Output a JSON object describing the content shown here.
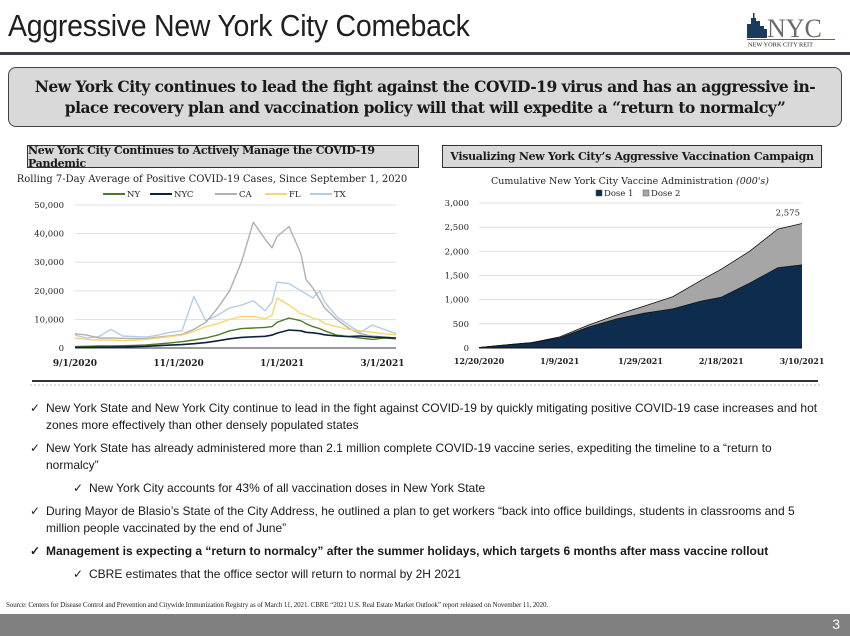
{
  "header": {
    "title": "Aggressive New York City Comeback",
    "logo": {
      "main_text": "NYC",
      "sub_text": "NEW YORK CITY REIT",
      "icon": "skyline-icon"
    }
  },
  "callout": {
    "text": "New York City continues to lead the fight against the COVID-19 virus and has an aggressive in-place recovery plan and vaccination policy will that will expedite a “return to normalcy”"
  },
  "sections": {
    "left_header": "New York City Continues to Actively Manage the COVID-19 Pandemic",
    "right_header": "Visualizing New York City’s Aggressive Vaccination Campaign"
  },
  "chart_data": [
    {
      "type": "line",
      "title": "Rolling 7-Day Average of Positive COVID-19 Cases, Since September 1, 2020",
      "xlabel": "",
      "ylabel": "",
      "ylim": [
        0,
        50000
      ],
      "yticks": [
        0,
        10000,
        20000,
        30000,
        40000,
        50000
      ],
      "ytick_labels": [
        "0",
        "10,000",
        "20,000",
        "30,000",
        "40,000",
        "50,000"
      ],
      "xtick_labels": [
        "9/1/2020",
        "11/1/2020",
        "1/1/2021",
        "3/1/2021"
      ],
      "xtick_positions": [
        0,
        61,
        122,
        181
      ],
      "xrange": [
        0,
        189
      ],
      "grid": true,
      "legend": "top",
      "x": [
        0,
        7,
        14,
        21,
        28,
        35,
        42,
        49,
        56,
        63,
        70,
        77,
        84,
        91,
        98,
        105,
        112,
        116,
        119,
        126,
        133,
        136,
        140,
        144,
        147,
        154,
        161,
        168,
        175,
        182,
        189
      ],
      "series": [
        {
          "name": "NY",
          "color": "#4f7a2c",
          "values": [
            500,
            600,
            700,
            700,
            800,
            900,
            1100,
            1400,
            1800,
            2200,
            2800,
            3500,
            4500,
            6000,
            6800,
            7000,
            7200,
            7500,
            9000,
            10500,
            9500,
            8500,
            7500,
            6800,
            6000,
            4500,
            4000,
            3500,
            3000,
            3500,
            3200
          ]
        },
        {
          "name": "NYC",
          "color": "#0c2340",
          "values": [
            200,
            250,
            300,
            350,
            400,
            500,
            600,
            800,
            1000,
            1200,
            1500,
            1900,
            2500,
            3200,
            3700,
            3900,
            4100,
            4500,
            5200,
            6300,
            6000,
            5500,
            5300,
            5000,
            4600,
            4200,
            4000,
            4200,
            3800,
            3700,
            3500
          ]
        },
        {
          "name": "CA",
          "color": "#b0b0b0",
          "values": [
            5000,
            4500,
            3500,
            3500,
            3400,
            3300,
            3300,
            3800,
            4200,
            4800,
            6500,
            9000,
            14000,
            20000,
            30000,
            44000,
            38000,
            35000,
            39000,
            42500,
            33000,
            24000,
            21000,
            17000,
            14000,
            10000,
            7000,
            5000,
            4200,
            3800,
            3500
          ]
        },
        {
          "name": "FL",
          "color": "#f5d76e",
          "values": [
            3500,
            3000,
            2800,
            2800,
            2600,
            2700,
            3000,
            3500,
            4000,
            4500,
            5800,
            7500,
            8500,
            10000,
            11000,
            11000,
            10200,
            11500,
            17500,
            15000,
            12000,
            11500,
            10500,
            9800,
            8500,
            7500,
            6500,
            6000,
            5500,
            5000,
            4500
          ]
        },
        {
          "name": "TX",
          "color": "#b4cde6",
          "values": [
            4500,
            3500,
            4000,
            6500,
            4200,
            4000,
            3800,
            4500,
            5500,
            6000,
            18000,
            9500,
            11500,
            14000,
            15000,
            16500,
            13000,
            16000,
            23000,
            22500,
            20000,
            19000,
            17500,
            20000,
            16000,
            11000,
            8000,
            5500,
            8000,
            6500,
            5000
          ]
        }
      ]
    },
    {
      "type": "area",
      "stacked": true,
      "title": "Cumulative New York City Vaccine Administration",
      "title_suffix": "(000's)",
      "xlabel": "",
      "ylabel": "",
      "ylim": [
        0,
        3000
      ],
      "yticks": [
        0,
        500,
        1000,
        1500,
        2000,
        2500,
        3000
      ],
      "ytick_labels": [
        "0",
        "500",
        "1,000",
        "1,500",
        "2,000",
        "2,500",
        "3,000"
      ],
      "xtick_labels": [
        "12/20/2020",
        "1/9/2021",
        "1/29/2021",
        "2/18/2021",
        "3/10/2021"
      ],
      "xtick_positions": [
        0,
        20,
        40,
        60,
        80
      ],
      "xrange": [
        0,
        80
      ],
      "grid": true,
      "legend": "top",
      "x": [
        0,
        6,
        13,
        20,
        27,
        34,
        41,
        48,
        55,
        60,
        67,
        74,
        80
      ],
      "series": [
        {
          "name": "Dose 1",
          "color": "#0e2d4e",
          "values": [
            10,
            60,
            110,
            210,
            430,
            600,
            720,
            810,
            970,
            1050,
            1340,
            1660,
            1720
          ]
        },
        {
          "name": "Dose 2",
          "color": "#a6a6a6",
          "values": [
            0,
            0,
            0,
            20,
            40,
            80,
            150,
            250,
            430,
            580,
            660,
            800,
            855
          ]
        }
      ],
      "annotations": [
        {
          "x": 80,
          "label": "2,575"
        }
      ]
    }
  ],
  "bullets": [
    {
      "level": 1,
      "bold": false,
      "text": "New York State and New York City continue to lead in the fight against COVID-19 by quickly mitigating positive COVID-19 case increases and hot zones more effectively than other densely populated states"
    },
    {
      "level": 1,
      "bold": false,
      "text": "New York State has already administered more than 2.1 million complete COVID-19 vaccine series, expediting the timeline to a “return to normalcy”"
    },
    {
      "level": 2,
      "bold": false,
      "text": "New York City accounts for 43% of all vaccination doses in New York State"
    },
    {
      "level": 1,
      "bold": false,
      "text": "During Mayor de Blasio’s State of the City Address, he outlined a plan to get workers “back into office buildings, students in classrooms and 5 million people vaccinated by the end of June”"
    },
    {
      "level": 1,
      "bold": true,
      "text": "Management is expecting a “return to normalcy” after the summer holidays, which targets 6 months after mass vaccine rollout"
    },
    {
      "level": 2,
      "bold": false,
      "text": "CBRE estimates that the office sector will return to normal by 2H 2021"
    }
  ],
  "check_glyph": "✓",
  "footer": {
    "source": "Source: Centers for Disease Control and Prevention and Citywide Immunization Registry as of March 11, 2021. CBRE “2021 U.S. Real Estate Market Outlook” report released on November 11, 2020.",
    "page_number": "3"
  }
}
